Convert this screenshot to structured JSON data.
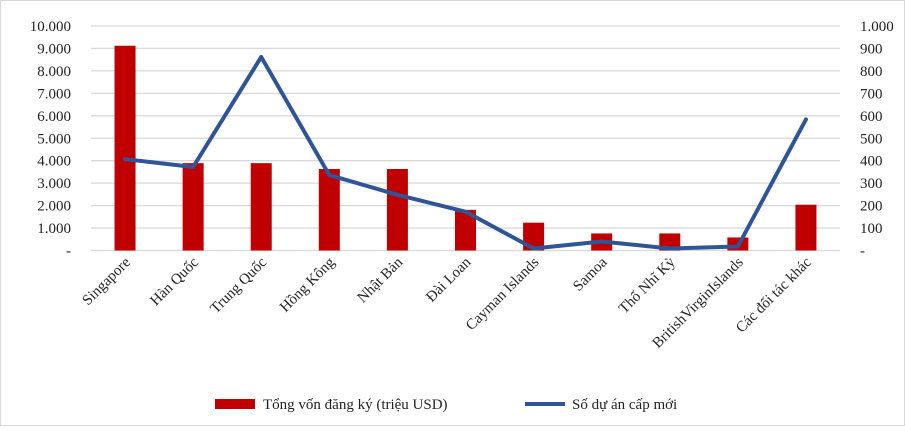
{
  "chart_data": {
    "type": "bar+line",
    "categories": [
      "Singapore",
      "Hàn Quốc",
      "Trung Quốc",
      "Hồng Kông",
      "Nhật Bản",
      "Đài Loan",
      "Cayman Islands",
      "Samoa",
      "Thổ Nhĩ Kỳ",
      "BritishVirginIslands",
      "Các đối tác khác"
    ],
    "series": [
      {
        "name": "Tổng vốn đăng ký (triệu USD)",
        "type": "bar",
        "axis": "left",
        "color": "#c00000",
        "values": [
          9120,
          3890,
          3890,
          3630,
          3630,
          1810,
          1240,
          760,
          760,
          580,
          2040
        ]
      },
      {
        "name": "Số dự án cấp mới",
        "type": "line",
        "axis": "right",
        "color": "#2f5597",
        "values": [
          407,
          372,
          862,
          336,
          248,
          173,
          9,
          40,
          9,
          18,
          584
        ]
      }
    ],
    "left_axis": {
      "ylim": [
        0,
        10000
      ],
      "ticks": [
        "-",
        "1.000",
        "2.000",
        "3.000",
        "4.000",
        "5.000",
        "6.000",
        "7.000",
        "8.000",
        "9.000",
        "10.000"
      ]
    },
    "right_axis": {
      "ylim": [
        0,
        1000
      ],
      "ticks": [
        "-",
        "100",
        "200",
        "300",
        "400",
        "500",
        "600",
        "700",
        "800",
        "900",
        "1.000"
      ]
    },
    "grid": true,
    "legend": "bottom"
  }
}
